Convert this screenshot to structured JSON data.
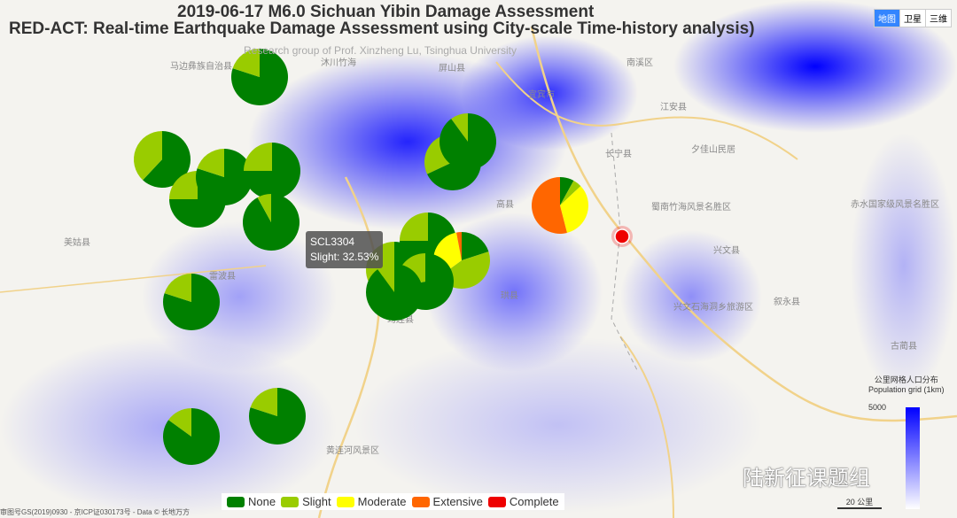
{
  "title": "2019-06-17 M6.0 Sichuan Yibin Damage Assessment",
  "subtitle": "RED-ACT: Real-time Earthquake Damage Assessment using City-scale Time-history analysis)",
  "credit": "Research group of Prof. Xinzheng Lu, Tsinghua University",
  "map_types": [
    "地图",
    "卫星",
    "三维"
  ],
  "places": [
    "马边彝族自治县",
    "沐川竹海",
    "屏山县",
    "宜宾市",
    "长宁县",
    "珙县",
    "高县",
    "兴文县",
    "筠连县",
    "美姑县",
    "雷波县",
    "叙永县",
    "古蔺县",
    "蜀南竹海风景名胜区",
    "兴文石海洞乡旅游区",
    "黄连河风景区",
    "夕佳山民居",
    "赤水国家级风景名胜区",
    "南溪区",
    "江安县"
  ],
  "damage_states": [
    "None",
    "Slight",
    "Moderate",
    "Extensive",
    "Complete"
  ],
  "colors": {
    "None": "#008000",
    "Slight": "#99cc00",
    "Moderate": "#ffff00",
    "Extensive": "#ff6600",
    "Complete": "#ee0000",
    "heat": "#0000ff"
  },
  "pies": [
    {
      "v": [
        0.8,
        0.2,
        0,
        0,
        0
      ]
    },
    {
      "v": [
        0.62,
        0.38,
        0,
        0,
        0
      ]
    },
    {
      "v": [
        0.75,
        0.25,
        0,
        0,
        0
      ]
    },
    {
      "v": [
        0.8,
        0.2,
        0,
        0,
        0
      ]
    },
    {
      "v": [
        0.75,
        0.25,
        0,
        0,
        0
      ]
    },
    {
      "v": [
        0.92,
        0.08,
        0,
        0,
        0
      ]
    },
    {
      "v": [
        0.68,
        0.32,
        0,
        0,
        0
      ]
    },
    {
      "v": [
        0.9,
        0.1,
        0,
        0,
        0
      ]
    },
    {
      "v": [
        0.08,
        0.05,
        0.33,
        0.54,
        0
      ]
    },
    {
      "v": [
        0.8,
        0.2,
        0,
        0,
        0
      ]
    },
    {
      "v": [
        0.85,
        0.15,
        0,
        0,
        0
      ]
    },
    {
      "v": [
        0.8,
        0.2,
        0,
        0,
        0
      ]
    },
    {
      "v": [
        0.75,
        0.25,
        0,
        0,
        0
      ]
    },
    {
      "v": [
        0.2,
        0.45,
        0.32,
        0.03,
        0
      ]
    },
    {
      "v": [
        0.6747,
        0.3253,
        0,
        0,
        0
      ]
    },
    {
      "v": [
        0.72,
        0.28,
        0,
        0,
        0
      ]
    },
    {
      "v": [
        0.9,
        0.1,
        0,
        0,
        0
      ]
    }
  ],
  "tooltip": {
    "name": "SCL3304",
    "text": "Slight: 32.53%"
  },
  "population_legend": {
    "title_cn": "公里网格人口分布",
    "title_en": "Population grid (1km)",
    "max": "5000"
  },
  "watermark": "陆新征课题组",
  "scale": "20 公里",
  "copyright": "审图号GS(2019)0930 - 京ICP证030173号 - Data © 长地万方"
}
